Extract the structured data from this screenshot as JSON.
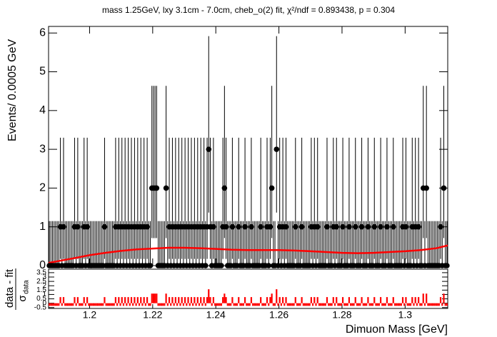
{
  "chart_data": [
    {
      "type": "scatter",
      "title": "mass 1.25GeV, lxy 3.1cm - 7.0cm, cheb_o(2) fit, χ²/ndf = 0.893438, p = 0.304",
      "ylabel": "Events/ 0.0005 GeV",
      "xlabel": "Dimuon Mass [GeV]",
      "color": "#000000",
      "xlim": [
        1.187,
        1.3135
      ],
      "xticks": [
        1.2,
        1.22,
        1.24,
        1.26,
        1.28,
        1.3
      ],
      "ylim": [
        0,
        6.17
      ],
      "yticks": [
        0,
        1,
        2,
        3,
        4,
        5,
        6
      ],
      "errors": [
        [
          0,
          1.148
        ],
        [
          0.827,
          2.299
        ],
        [
          1.292,
          2.637
        ],
        [
          1.633,
          2.918
        ]
      ],
      "x": [
        1.18725,
        1.18775,
        1.18825,
        1.18875,
        1.18925,
        1.18975,
        1.19025,
        1.19075,
        1.19125,
        1.19175,
        1.19225,
        1.19275,
        1.19325,
        1.19375,
        1.19425,
        1.19475,
        1.19525,
        1.19575,
        1.19625,
        1.19675,
        1.19725,
        1.19775,
        1.19825,
        1.19875,
        1.19925,
        1.19975,
        1.20025,
        1.20075,
        1.20125,
        1.20175,
        1.20225,
        1.20275,
        1.20325,
        1.20375,
        1.20425,
        1.20475,
        1.20525,
        1.20575,
        1.20625,
        1.20675,
        1.20725,
        1.20775,
        1.20825,
        1.20875,
        1.20925,
        1.20975,
        1.21025,
        1.21075,
        1.21125,
        1.21175,
        1.21225,
        1.21275,
        1.21325,
        1.21375,
        1.21425,
        1.21475,
        1.21525,
        1.21575,
        1.21625,
        1.21675,
        1.21725,
        1.21775,
        1.21825,
        1.21875,
        1.21925,
        1.21975,
        1.22025,
        1.22075,
        1.22125,
        1.22175,
        1.22225,
        1.22275,
        1.22325,
        1.22375,
        1.22425,
        1.22475,
        1.22525,
        1.22575,
        1.22625,
        1.22675,
        1.22725,
        1.22775,
        1.22825,
        1.22875,
        1.22925,
        1.22975,
        1.23025,
        1.23075,
        1.23125,
        1.23175,
        1.23225,
        1.23275,
        1.23325,
        1.23375,
        1.23425,
        1.23475,
        1.23525,
        1.23575,
        1.23625,
        1.23675,
        1.23725,
        1.23775,
        1.23825,
        1.23875,
        1.23925,
        1.23975,
        1.24025,
        1.24075,
        1.24125,
        1.24175,
        1.24225,
        1.24275,
        1.24325,
        1.24375,
        1.24425,
        1.24475,
        1.24525,
        1.24575,
        1.24625,
        1.24675,
        1.24725,
        1.24775,
        1.24825,
        1.24875,
        1.24925,
        1.24975,
        1.25025,
        1.25075,
        1.25125,
        1.25175,
        1.25225,
        1.25275,
        1.25325,
        1.25375,
        1.25425,
        1.25475,
        1.25525,
        1.25575,
        1.25625,
        1.25675,
        1.25725,
        1.25775,
        1.25825,
        1.25875,
        1.25925,
        1.25975,
        1.26025,
        1.26075,
        1.26125,
        1.26175,
        1.26225,
        1.26275,
        1.26325,
        1.26375,
        1.26425,
        1.26475,
        1.26525,
        1.26575,
        1.26625,
        1.26675,
        1.26725,
        1.26775,
        1.26825,
        1.26875,
        1.26925,
        1.26975,
        1.27025,
        1.27075,
        1.27125,
        1.27175,
        1.27225,
        1.27275,
        1.27325,
        1.27375,
        1.27425,
        1.27475,
        1.27525,
        1.27575,
        1.27625,
        1.27675,
        1.27725,
        1.27775,
        1.27825,
        1.27875,
        1.27925,
        1.27975,
        1.28025,
        1.28075,
        1.28125,
        1.28175,
        1.28225,
        1.28275,
        1.28325,
        1.28375,
        1.28425,
        1.28475,
        1.28525,
        1.28575,
        1.28625,
        1.28675,
        1.28725,
        1.28775,
        1.28825,
        1.28875,
        1.28925,
        1.28975,
        1.29025,
        1.29075,
        1.29125,
        1.29175,
        1.29225,
        1.29275,
        1.29325,
        1.29375,
        1.29425,
        1.29475,
        1.29525,
        1.29575,
        1.29625,
        1.29675,
        1.29725,
        1.29775,
        1.29825,
        1.29875,
        1.29925,
        1.29975,
        1.30025,
        1.30075,
        1.30125,
        1.30175,
        1.30225,
        1.30275,
        1.30325,
        1.30375,
        1.30425,
        1.30475,
        1.30525,
        1.30575,
        1.30625,
        1.30675,
        1.30725,
        1.30775,
        1.30825,
        1.30875,
        1.30925,
        1.30975,
        1.31025,
        1.31075,
        1.31125,
        1.31175,
        1.31225,
        1.31275,
        1.31325
      ],
      "values": [
        0,
        0,
        0,
        0,
        0,
        0,
        0,
        1,
        0,
        1,
        0,
        0,
        0,
        0,
        0,
        0,
        1,
        0,
        1,
        0,
        0,
        0,
        1,
        0,
        1,
        0,
        0,
        0,
        0,
        0,
        0,
        0,
        0,
        0,
        0,
        1,
        0,
        0,
        0,
        0,
        0,
        0,
        1,
        0,
        1,
        0,
        1,
        0,
        1,
        0,
        1,
        0,
        1,
        0,
        1,
        0,
        1,
        0,
        1,
        0,
        1,
        0,
        1,
        0,
        0,
        2,
        2,
        2,
        2,
        0,
        0,
        0,
        0,
        0,
        2,
        0,
        1,
        0,
        1,
        0,
        1,
        0,
        1,
        0,
        1,
        0,
        1,
        0,
        1,
        0,
        1,
        0,
        1,
        0,
        1,
        0,
        1,
        0,
        1,
        0,
        1,
        3,
        1,
        0,
        1,
        0,
        0,
        0,
        0,
        0,
        1,
        2,
        1,
        0,
        0,
        0,
        1,
        0,
        0,
        0,
        1,
        0,
        0,
        0,
        1,
        0,
        0,
        0,
        1,
        0,
        0,
        0,
        0,
        0,
        1,
        0,
        0,
        0,
        1,
        0,
        1,
        2,
        0,
        0,
        3,
        0,
        1,
        0,
        1,
        0,
        1,
        0,
        0,
        0,
        0,
        0,
        1,
        0,
        0,
        0,
        1,
        0,
        0,
        0,
        0,
        0,
        1,
        0,
        1,
        0,
        1,
        0,
        0,
        0,
        0,
        0,
        1,
        0,
        0,
        0,
        1,
        0,
        1,
        0,
        0,
        0,
        1,
        0,
        0,
        0,
        1,
        0,
        0,
        0,
        1,
        0,
        0,
        0,
        1,
        0,
        0,
        0,
        1,
        0,
        0,
        0,
        1,
        0,
        0,
        0,
        1,
        0,
        0,
        0,
        1,
        0,
        0,
        0,
        1,
        0,
        0,
        0,
        0,
        0,
        1,
        0,
        1,
        0,
        0,
        0,
        1,
        0,
        1,
        0,
        1,
        0,
        0,
        2,
        0,
        2,
        0,
        0,
        0,
        0,
        0,
        0,
        0,
        0,
        1,
        0,
        2,
        0,
        0
      ],
      "fit": {
        "color": "#ff0000",
        "x": [
          1.187,
          1.195,
          1.2,
          1.205,
          1.21,
          1.215,
          1.22,
          1.225,
          1.23,
          1.235,
          1.24,
          1.245,
          1.25,
          1.255,
          1.26,
          1.265,
          1.27,
          1.275,
          1.28,
          1.285,
          1.29,
          1.295,
          1.3,
          1.305,
          1.31,
          1.3135
        ],
        "y": [
          0.07,
          0.19,
          0.27,
          0.33,
          0.38,
          0.42,
          0.44,
          0.46,
          0.46,
          0.45,
          0.43,
          0.41,
          0.4,
          0.4,
          0.4,
          0.39,
          0.37,
          0.35,
          0.33,
          0.32,
          0.33,
          0.35,
          0.37,
          0.4,
          0.45,
          0.52
        ]
      }
    },
    {
      "type": "bar",
      "ylabel_numerator": "data - fit",
      "ylabel_denominator": "σ",
      "ylabel_subscript": "data",
      "color": "#ff0000",
      "ylim": [
        -0.6,
        3.9
      ],
      "yticks": [
        -0.5,
        0,
        0.5,
        1,
        1.5,
        2,
        2.5,
        3,
        3.5
      ],
      "values": [
        -0.3,
        -0.3,
        -0.3,
        -0.3,
        -0.3,
        -0.3,
        -0.3,
        0.7,
        -0.3,
        0.7,
        -0.3,
        -0.3,
        -0.3,
        -0.3,
        -0.3,
        -0.3,
        0.7,
        -0.3,
        0.7,
        -0.3,
        -0.3,
        -0.3,
        0.7,
        -0.3,
        0.7,
        -0.3,
        -0.3,
        -0.3,
        -0.3,
        -0.3,
        -0.3,
        -0.3,
        -0.3,
        -0.3,
        -0.3,
        0.7,
        -0.3,
        -0.3,
        -0.3,
        -0.3,
        -0.3,
        -0.3,
        0.7,
        -0.3,
        0.7,
        -0.3,
        0.7,
        -0.3,
        0.7,
        -0.3,
        0.7,
        -0.3,
        0.7,
        -0.3,
        0.7,
        -0.3,
        0.7,
        -0.3,
        0.7,
        -0.3,
        0.7,
        -0.3,
        0.7,
        -0.3,
        -0.3,
        1.1,
        1.1,
        1.1,
        1.1,
        -0.3,
        -0.3,
        -0.3,
        -0.3,
        -0.3,
        1.1,
        -0.3,
        0.7,
        -0.3,
        0.7,
        -0.3,
        0.7,
        -0.3,
        0.7,
        -0.3,
        0.7,
        -0.3,
        0.7,
        -0.3,
        0.7,
        -0.3,
        0.7,
        -0.3,
        0.7,
        -0.3,
        0.7,
        -0.3,
        0.7,
        -0.3,
        0.7,
        -0.3,
        0.7,
        1.6,
        0.7,
        -0.3,
        0.7,
        -0.3,
        -0.3,
        -0.3,
        -0.3,
        -0.3,
        0.7,
        1.1,
        0.7,
        -0.3,
        -0.3,
        -0.3,
        0.7,
        -0.3,
        -0.3,
        -0.3,
        0.7,
        -0.3,
        -0.3,
        -0.3,
        0.7,
        -0.3,
        -0.3,
        -0.3,
        0.7,
        -0.3,
        -0.3,
        -0.3,
        -0.3,
        -0.3,
        0.7,
        -0.3,
        -0.3,
        -0.3,
        0.7,
        -0.3,
        0.7,
        1.1,
        -0.3,
        -0.3,
        1.6,
        -0.3,
        0.7,
        -0.3,
        0.7,
        -0.3,
        0.7,
        -0.3,
        -0.3,
        -0.3,
        -0.3,
        -0.3,
        0.7,
        -0.3,
        -0.3,
        -0.3,
        0.7,
        -0.3,
        -0.3,
        -0.3,
        -0.3,
        -0.3,
        0.7,
        -0.3,
        0.7,
        -0.3,
        0.7,
        -0.3,
        -0.3,
        -0.3,
        -0.3,
        -0.3,
        0.7,
        -0.3,
        -0.3,
        -0.3,
        0.7,
        -0.3,
        0.7,
        -0.3,
        -0.3,
        -0.3,
        0.7,
        -0.3,
        -0.3,
        -0.3,
        0.7,
        -0.3,
        -0.3,
        -0.3,
        0.7,
        -0.3,
        -0.3,
        -0.3,
        0.7,
        -0.3,
        -0.3,
        -0.3,
        0.7,
        -0.3,
        -0.3,
        -0.3,
        0.7,
        -0.3,
        -0.3,
        -0.3,
        0.7,
        -0.3,
        -0.3,
        -0.3,
        0.7,
        -0.3,
        -0.3,
        -0.3,
        0.7,
        -0.3,
        -0.3,
        -0.3,
        -0.3,
        -0.3,
        0.7,
        -0.3,
        0.7,
        -0.3,
        -0.3,
        -0.3,
        0.7,
        -0.3,
        0.7,
        -0.3,
        0.7,
        -0.3,
        -0.3,
        1.1,
        -0.3,
        1.1,
        -0.3,
        -0.3,
        -0.3,
        -0.3,
        -0.3,
        -0.3,
        -0.3,
        -0.3,
        0.7,
        -0.3,
        1.1,
        -0.3,
        -0.3
      ]
    }
  ]
}
